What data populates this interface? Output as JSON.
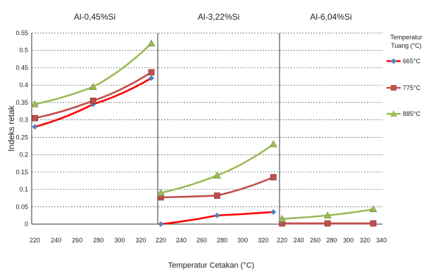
{
  "chart_data": {
    "type": "line",
    "ylabel": "Indeks retak",
    "xlabel": "Temperatur Cetakan (°C)",
    "ylim": [
      0,
      0.55
    ],
    "yticks": [
      "0",
      "0.05",
      "0.1",
      "0.15",
      "0.2",
      "0.25",
      "0.3",
      "0.35",
      "0.4",
      "0.45",
      "0.5",
      "0.55"
    ],
    "xlim": [
      220,
      340
    ],
    "xticks": [
      [
        "220",
        "240",
        "260",
        "280",
        "300",
        "320"
      ],
      [
        "220",
        "240",
        "260",
        "280",
        "300",
        "320"
      ],
      [
        "220",
        "240",
        "260",
        "280",
        "300",
        "320",
        "340"
      ]
    ],
    "grid": "horizontal-dashed",
    "legend": {
      "title_line1": "Temperatur",
      "title_line2": "Tuang (°C)",
      "placement": "right",
      "entries": [
        "665°C",
        "775°C",
        "885°C"
      ]
    },
    "series_colors": [
      "#ff0000",
      "#c0504d",
      "#9bbb59"
    ],
    "marker_colors": [
      "#4f81bd",
      "#c0504d",
      "#9bbb59"
    ],
    "marker_shapes": [
      "diamond",
      "square",
      "triangle"
    ],
    "panels": [
      {
        "title": "Al-0,45%Si",
        "x": [
          220,
          275,
          330
        ],
        "series": [
          {
            "name": "665°C",
            "values": [
              0.28,
              0.345,
              0.42
            ]
          },
          {
            "name": "775°C",
            "values": [
              0.305,
              0.355,
              0.437
            ]
          },
          {
            "name": "885°C",
            "values": [
              0.345,
              0.395,
              0.52
            ]
          }
        ]
      },
      {
        "title": "Al-3,22%Si",
        "x": [
          220,
          275,
          330
        ],
        "series": [
          {
            "name": "665°C",
            "values": [
              0.0,
              0.025,
              0.035
            ]
          },
          {
            "name": "775°C",
            "values": [
              0.077,
              0.082,
              0.135
            ]
          },
          {
            "name": "885°C",
            "values": [
              0.09,
              0.14,
              0.23
            ]
          }
        ]
      },
      {
        "title": "Al-6,04%Si",
        "x": [
          220,
          275,
          330
        ],
        "series": [
          {
            "name": "665°C",
            "values": [
              0.002,
              0.002,
              0.002
            ]
          },
          {
            "name": "775°C",
            "values": [
              0.002,
              0.002,
              0.002
            ]
          },
          {
            "name": "885°C",
            "values": [
              0.015,
              0.025,
              0.043
            ]
          }
        ]
      }
    ]
  }
}
